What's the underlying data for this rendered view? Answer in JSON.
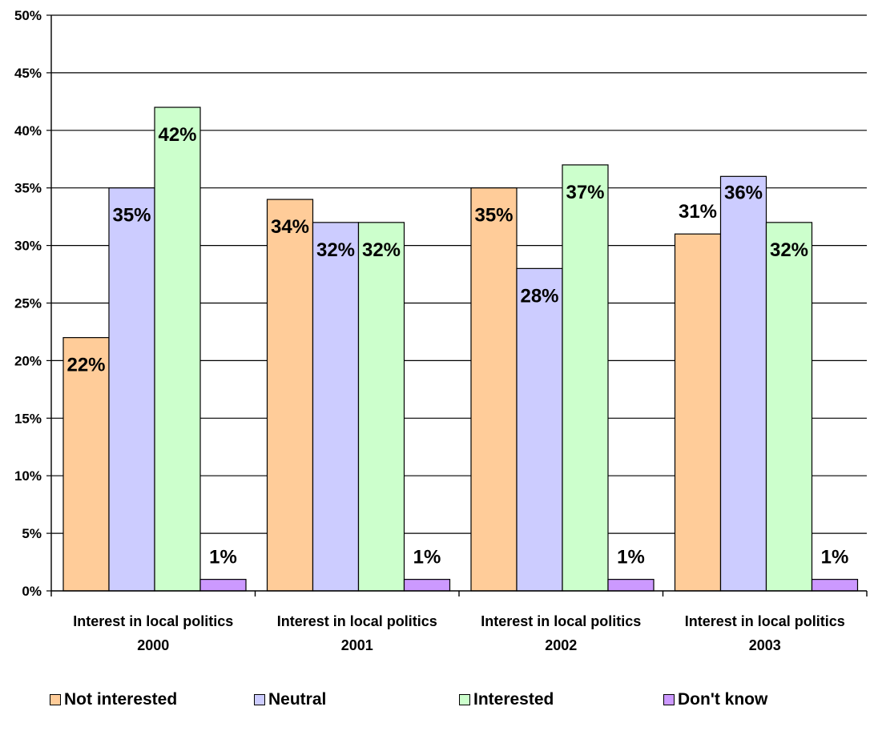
{
  "chart_data": {
    "type": "bar",
    "categories": [
      [
        "Interest in local politics",
        "2000"
      ],
      [
        "Interest in local politics",
        "2001"
      ],
      [
        "Interest in local politics",
        "2002"
      ],
      [
        "Interest in local politics",
        "2003"
      ]
    ],
    "series": [
      {
        "name": "Not interested",
        "color": "#FFCC99",
        "values": [
          22,
          34,
          35,
          31
        ],
        "labels": [
          "22%",
          "34%",
          "35%",
          "31%"
        ]
      },
      {
        "name": "Neutral",
        "color": "#CCCCFF",
        "values": [
          35,
          32,
          28,
          36
        ],
        "labels": [
          "35%",
          "32%",
          "28%",
          "36%"
        ]
      },
      {
        "name": "Interested",
        "color": "#CCFFCC",
        "values": [
          42,
          32,
          37,
          32
        ],
        "labels": [
          "42%",
          "32%",
          "37%",
          "32%"
        ]
      },
      {
        "name": "Don't know",
        "color": "#CC99FF",
        "values": [
          1,
          1,
          1,
          1
        ],
        "labels": [
          "1%",
          "1%",
          "1%",
          "1%"
        ]
      }
    ],
    "ylim": [
      0,
      50
    ],
    "yticks": [
      "0%",
      "5%",
      "10%",
      "15%",
      "20%",
      "25%",
      "30%",
      "35%",
      "40%",
      "45%",
      "50%"
    ],
    "grid": true,
    "legend_position": "bottom"
  }
}
